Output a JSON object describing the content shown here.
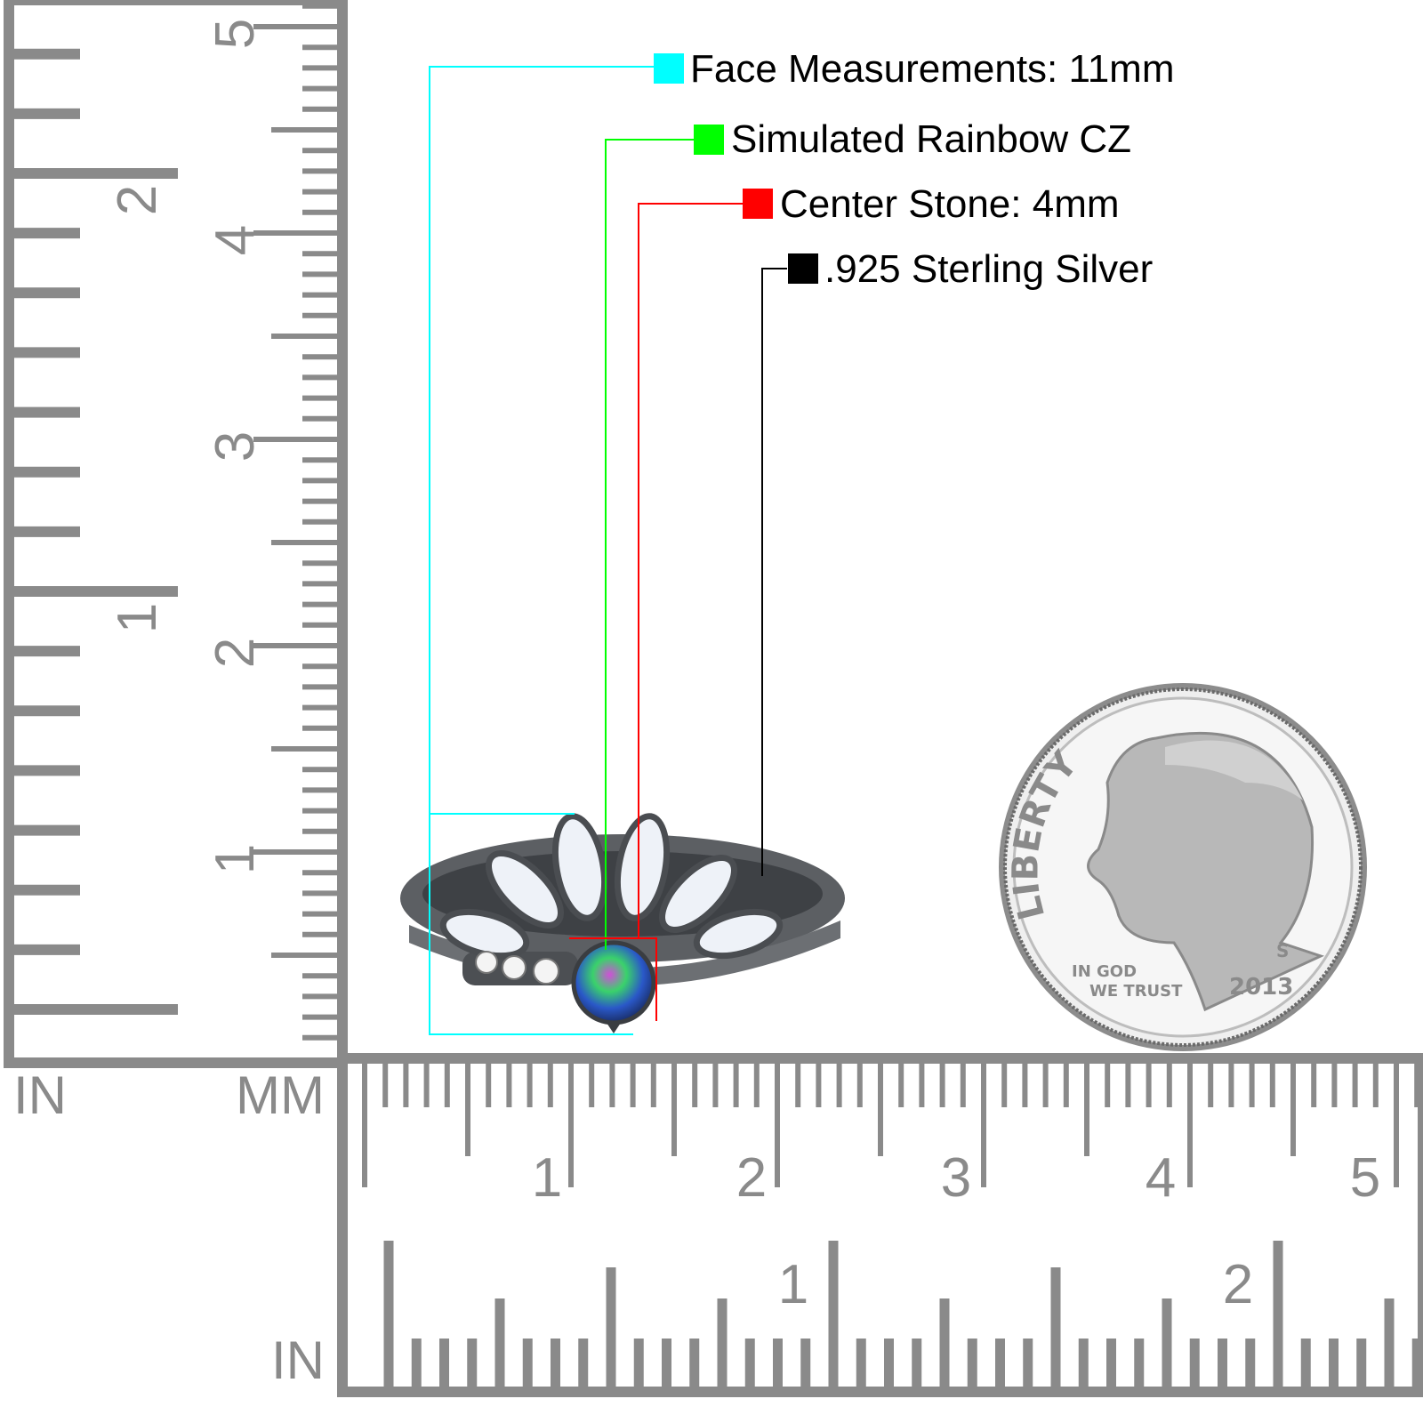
{
  "callouts": [
    {
      "text": "Face Measurements: 11mm",
      "color": "#00ffff"
    },
    {
      "text": "Simulated Rainbow CZ",
      "color": "#00ff00"
    },
    {
      "text": "Center Stone: 4mm",
      "color": "#ff0000"
    },
    {
      "text": ".925 Sterling Silver",
      "color": "#000000"
    }
  ],
  "rulers": {
    "color": "#8a8a8a",
    "vertical": {
      "mm_labels": [
        "1",
        "2",
        "3",
        "4",
        "5"
      ],
      "in_labels": [
        "1",
        "2"
      ]
    },
    "horizontal": {
      "mm_labels": [
        "1",
        "2",
        "3",
        "4",
        "5"
      ],
      "in_labels": [
        "1",
        "2"
      ]
    },
    "unit_labels": {
      "in_left": "IN",
      "mm": "MM",
      "in_bottom": "IN"
    }
  },
  "coin": {
    "top_text": "LIBERTY",
    "motto_line1": "IN GOD",
    "motto_line2": "WE TRUST",
    "year": "2013",
    "mint_mark": "S"
  },
  "ring": {
    "metal_color": "#5c5f63",
    "opal_color": "#eef2f8"
  }
}
